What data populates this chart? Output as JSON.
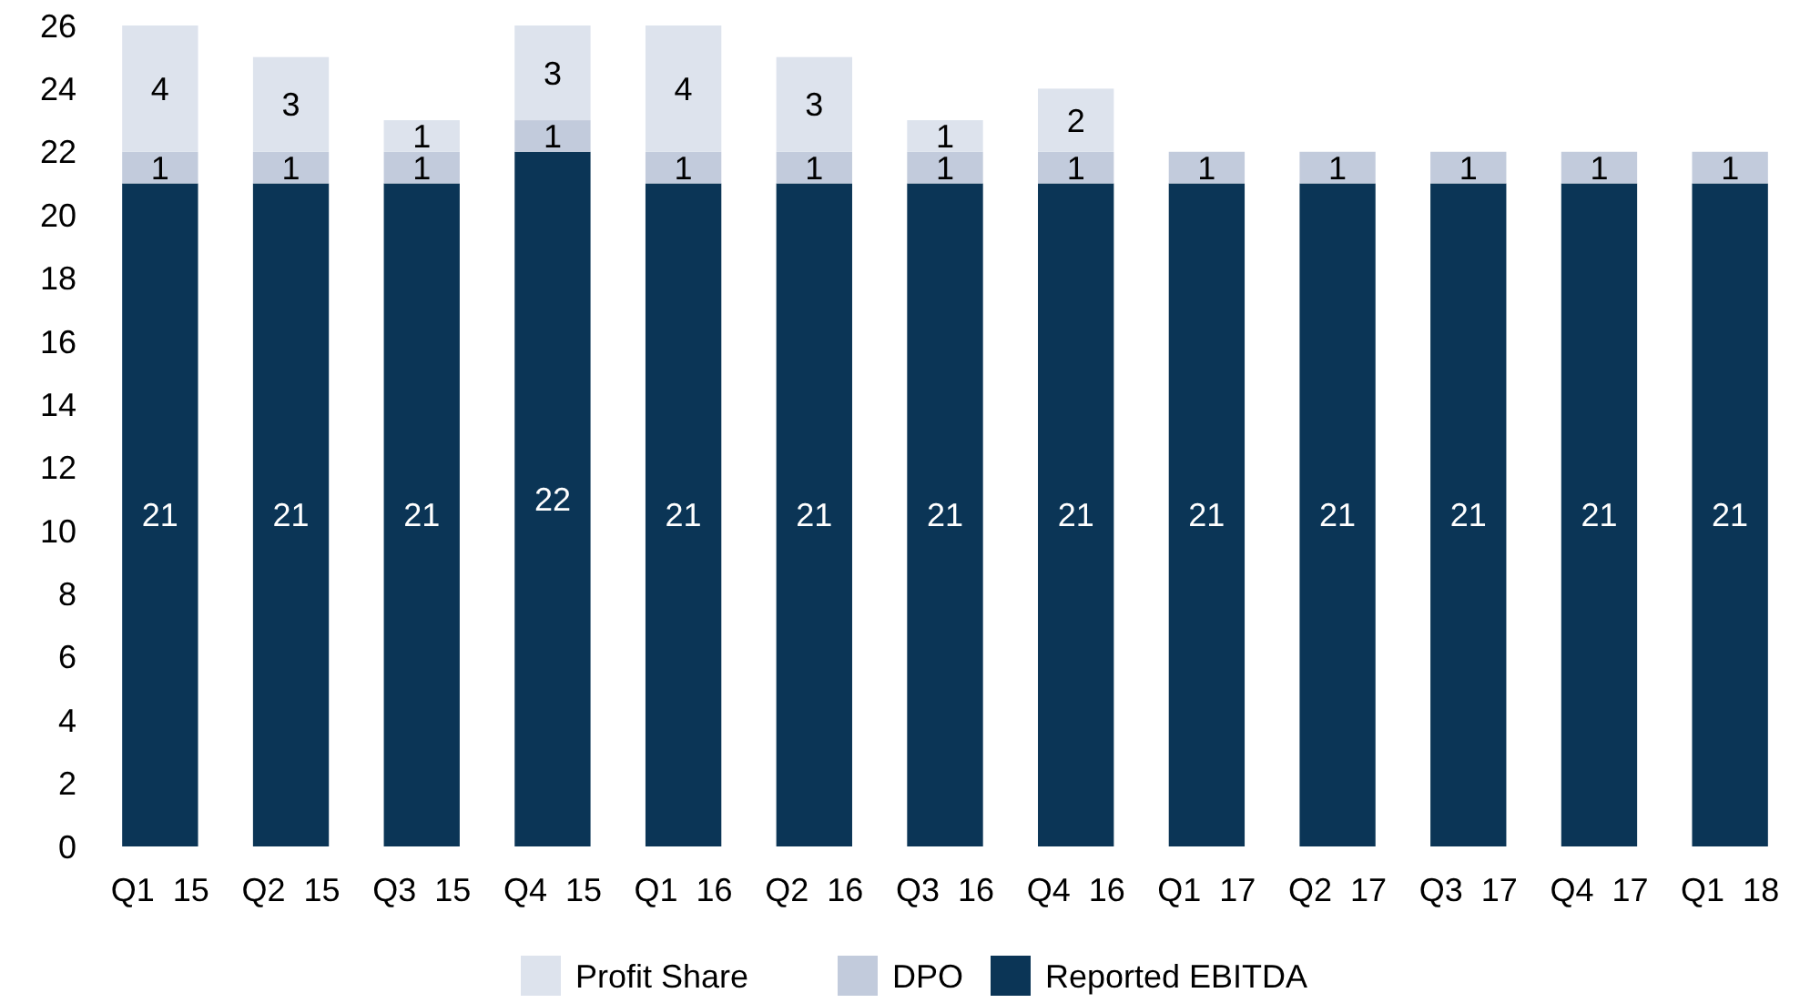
{
  "chart_data": {
    "type": "bar",
    "stacked": true,
    "categories": [
      "Q1  15",
      "Q2  15",
      "Q3  15",
      "Q4  15",
      "Q1  16",
      "Q2  16",
      "Q3  16",
      "Q4  16",
      "Q1  17",
      "Q2  17",
      "Q3  17",
      "Q4  17",
      "Q1  18"
    ],
    "series": [
      {
        "name": "Reported EBITDA",
        "color": "#0b3556",
        "values": [
          21,
          21,
          21,
          22,
          21,
          21,
          21,
          21,
          21,
          21,
          21,
          21,
          21
        ]
      },
      {
        "name": "DPO",
        "color": "#c2cbdc",
        "values": [
          1,
          1,
          1,
          1,
          1,
          1,
          1,
          1,
          1,
          1,
          1,
          1,
          1
        ]
      },
      {
        "name": "Profit Share",
        "color": "#dde3ed",
        "values": [
          4,
          3,
          1,
          3,
          4,
          3,
          1,
          2,
          null,
          null,
          null,
          null,
          null
        ]
      }
    ],
    "data_labels": true,
    "ylim": [
      0,
      26
    ],
    "yticks": [
      0,
      2,
      4,
      6,
      8,
      10,
      12,
      14,
      16,
      18,
      20,
      22,
      24,
      26
    ],
    "legend": "bottom",
    "grid": false
  }
}
